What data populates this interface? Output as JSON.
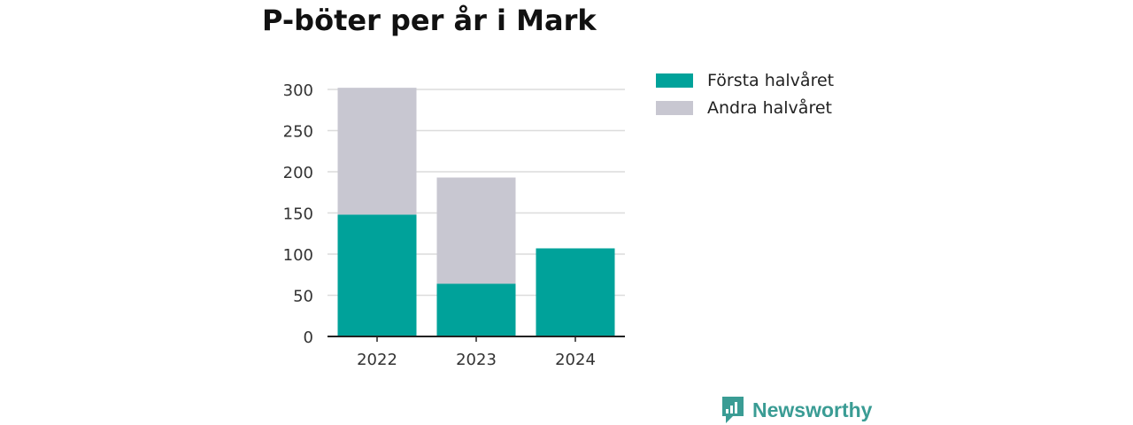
{
  "chart_data": {
    "type": "bar",
    "stacked": true,
    "title": "P-böter per år i Mark",
    "categories": [
      "2022",
      "2023",
      "2024"
    ],
    "series": [
      {
        "name": "Första halvåret",
        "values": [
          148,
          64,
          107
        ],
        "color": "#00a29a"
      },
      {
        "name": "Andra halvåret",
        "values": [
          154,
          129,
          0
        ],
        "color": "#c8c7d1"
      }
    ],
    "ylim": [
      0,
      300
    ],
    "yticks": [
      0,
      50,
      100,
      150,
      200,
      250,
      300
    ],
    "grid": true,
    "legend_position": "right"
  },
  "brand": {
    "name": "Newsworthy",
    "icon": "newsworthy-logo-icon",
    "color": "#3a9c94"
  }
}
